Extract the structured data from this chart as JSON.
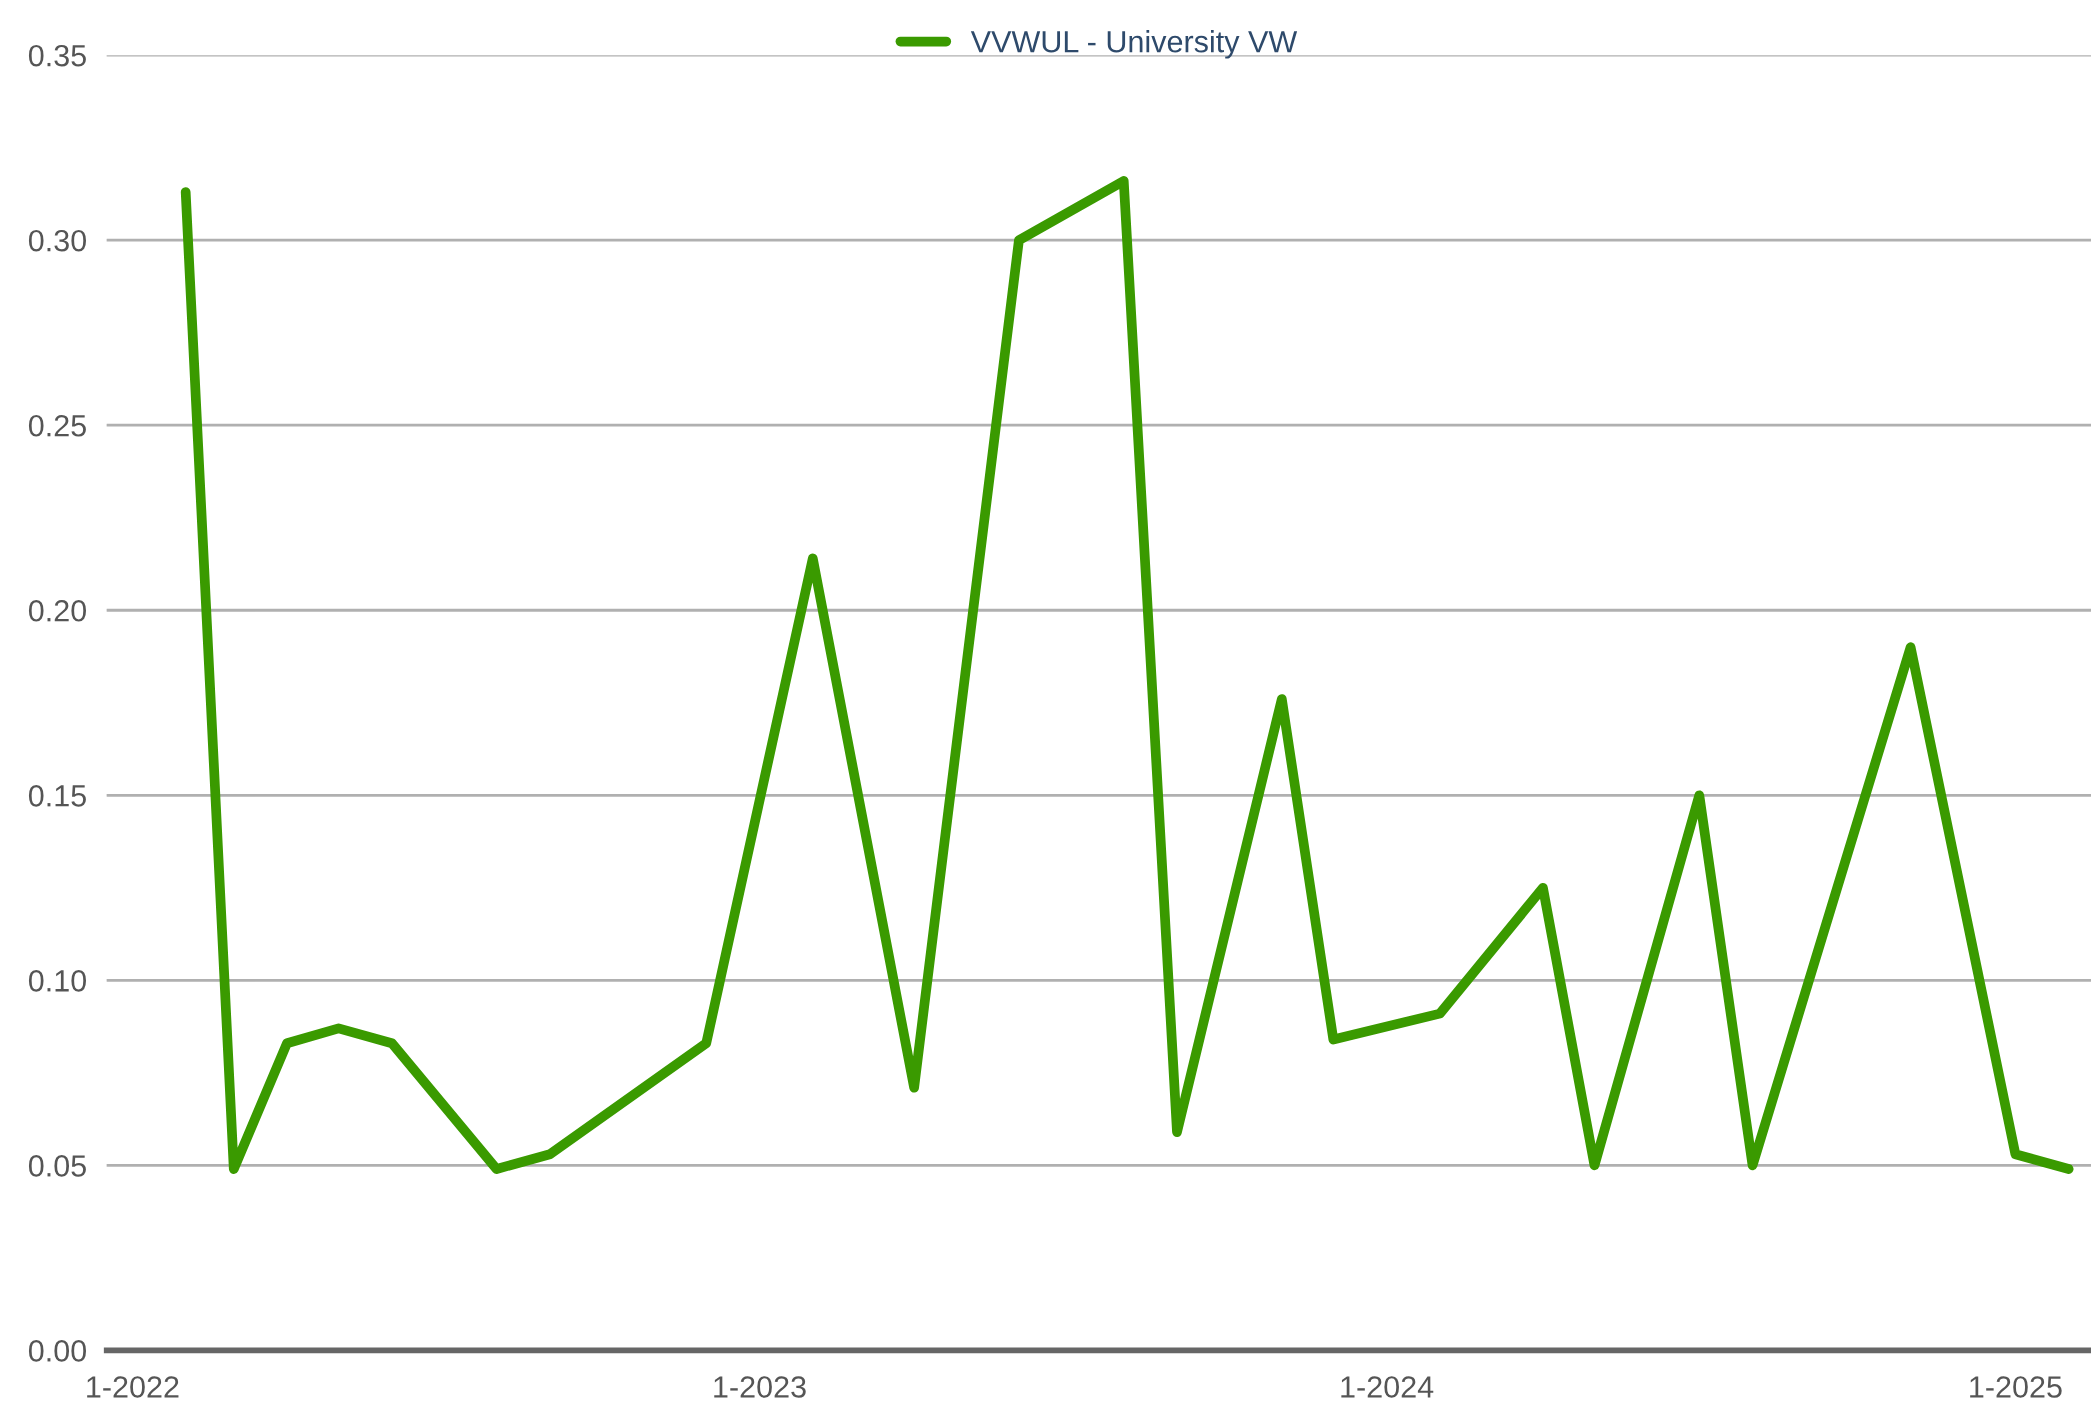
{
  "chart_data": {
    "type": "line",
    "x": [
      "2022-02",
      "2022-03",
      "2022-04",
      "2022-05",
      "2022-06",
      "2022-08",
      "2022-09",
      "2022-12",
      "2023-02",
      "2023-04",
      "2023-06",
      "2023-08",
      "2023-09",
      "2023-11",
      "2023-12",
      "2024-02",
      "2024-04",
      "2024-05",
      "2024-07",
      "2024-08",
      "2024-11",
      "2025-01",
      "2025-02"
    ],
    "series": [
      {
        "name": "VVWUL - University VW",
        "color": "#3a9a00",
        "values": [
          0.313,
          0.049,
          0.083,
          0.087,
          0.083,
          0.049,
          0.053,
          0.083,
          0.214,
          0.071,
          0.3,
          0.316,
          0.059,
          0.176,
          0.084,
          0.091,
          0.125,
          0.05,
          0.15,
          0.05,
          0.19,
          0.053,
          0.049
        ]
      }
    ],
    "xlim": [
      "2021-12-17",
      "2025-02-14"
    ],
    "xticks": [
      {
        "value": "2022-01",
        "label": "1-2022"
      },
      {
        "value": "2023-01",
        "label": "1-2023"
      },
      {
        "value": "2024-01",
        "label": "1-2024"
      },
      {
        "value": "2025-01",
        "label": "1-2025"
      }
    ],
    "ylim": [
      0,
      0.35
    ],
    "yticks": [
      {
        "value": 0,
        "label": "0.00"
      },
      {
        "value": 0.05,
        "label": "0.05"
      },
      {
        "value": 0.1,
        "label": "0.10"
      },
      {
        "value": 0.15,
        "label": "0.15"
      },
      {
        "value": 0.2,
        "label": "0.20"
      },
      {
        "value": 0.25,
        "label": "0.25"
      },
      {
        "value": 0.3,
        "label": "0.30"
      },
      {
        "value": 0.35,
        "label": "0.35"
      }
    ],
    "grid": "y",
    "legend": "top",
    "marker": "none",
    "line_style": "solid"
  }
}
